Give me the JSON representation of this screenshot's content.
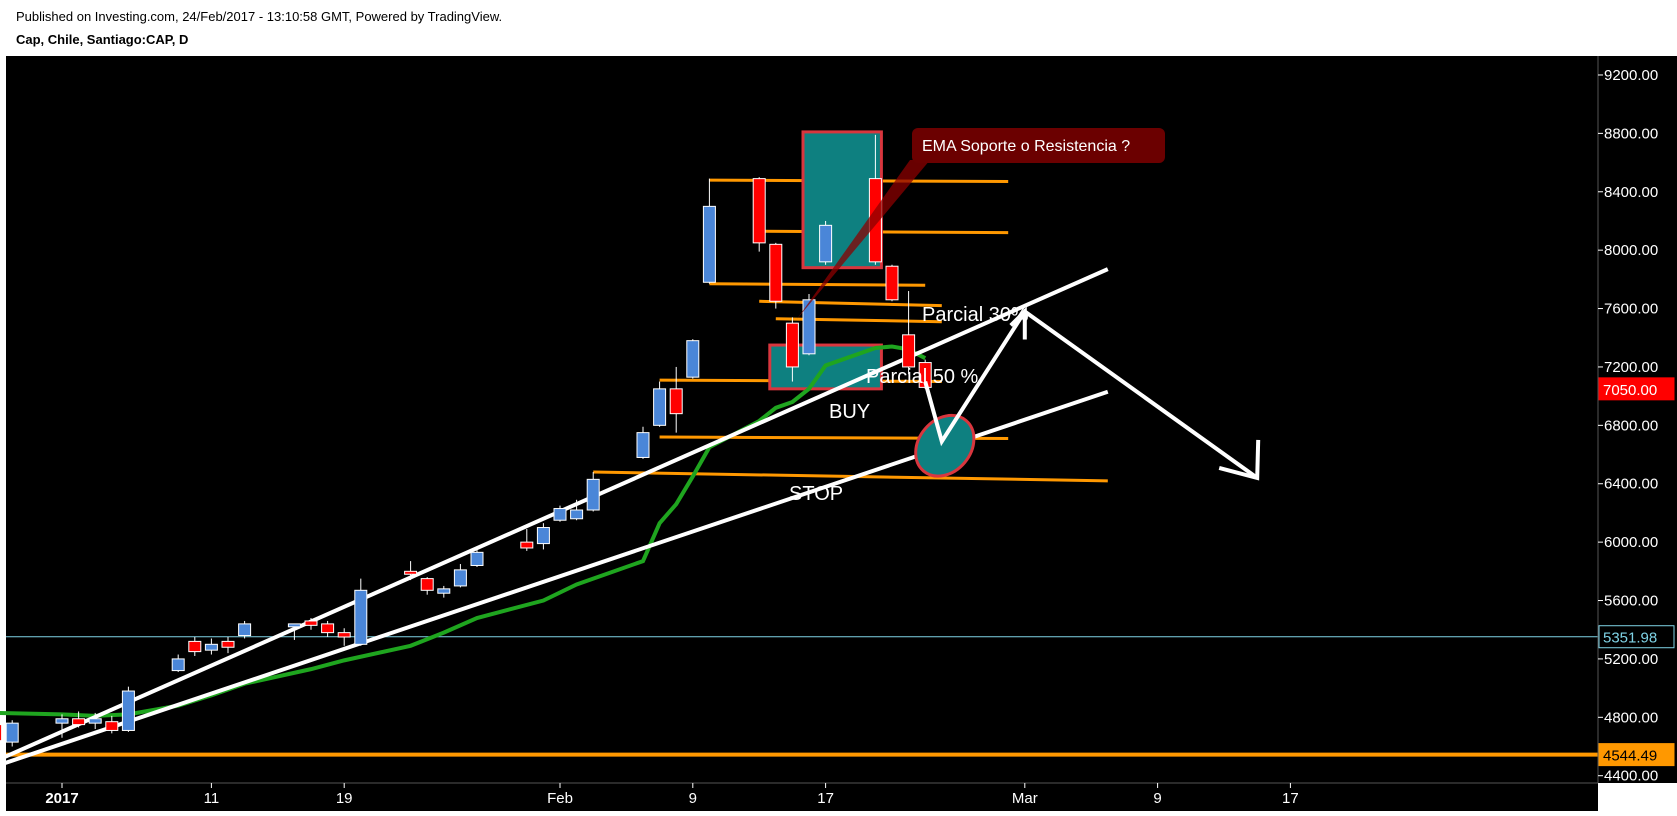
{
  "header": {
    "published": "Published on Investing.com, 24/Feb/2017 - 13:10:58 GMT, Powered by TradingView.",
    "symbol": "Cap, Chile, Santiago:CAP, D"
  },
  "colors": {
    "background": "#000000",
    "up": "#4a86d8",
    "down": "#ff0000",
    "ema": "#1fa51f",
    "level": "#ff9800",
    "trend": "#ffffff",
    "zone": "#0e8080",
    "last_price": "#ff0000",
    "h_line_label": "#7fd3e6"
  },
  "chart_data": {
    "type": "candlestick",
    "title": "Cap, Chile, Santiago:CAP, D",
    "timeframe": "D",
    "ylim": [
      4350,
      9330
    ],
    "y_ticks": [
      4400,
      4800,
      5200,
      5600,
      6000,
      6400,
      6800,
      7200,
      7600,
      8000,
      8400,
      8800,
      9200
    ],
    "y_tick_labels": [
      "4400.00",
      "4800.00",
      "5200.00",
      "5600.00",
      "6000.00",
      "6400.00",
      "6800.00",
      "7200.00",
      "7600.00",
      "8000.00",
      "8400.00",
      "8800.00",
      "9200.00"
    ],
    "x_ticks": [
      {
        "label": "2017",
        "date": "2017-01-02",
        "bold": true
      },
      {
        "label": "11",
        "date": "2017-01-11"
      },
      {
        "label": "19",
        "date": "2017-01-19"
      },
      {
        "label": "Feb",
        "date": "2017-02-01"
      },
      {
        "label": "9",
        "date": "2017-02-09"
      },
      {
        "label": "17",
        "date": "2017-02-17"
      },
      {
        "label": "Mar",
        "date": "2017-03-01"
      },
      {
        "label": "9",
        "date": "2017-03-09"
      },
      {
        "label": "17",
        "date": "2017-03-17"
      }
    ],
    "candles": [
      {
        "date": "2016-12-29",
        "o": 4750,
        "h": 4780,
        "l": 4620,
        "c": 4640
      },
      {
        "date": "2016-12-30",
        "o": 4630,
        "h": 4780,
        "l": 4600,
        "c": 4760
      },
      {
        "date": "2017-01-02",
        "o": 4760,
        "h": 4820,
        "l": 4660,
        "c": 4790
      },
      {
        "date": "2017-01-03",
        "o": 4790,
        "h": 4840,
        "l": 4730,
        "c": 4750
      },
      {
        "date": "2017-01-04",
        "o": 4760,
        "h": 4830,
        "l": 4720,
        "c": 4790
      },
      {
        "date": "2017-01-05",
        "o": 4770,
        "h": 4810,
        "l": 4690,
        "c": 4710
      },
      {
        "date": "2017-01-06",
        "o": 4710,
        "h": 5010,
        "l": 4700,
        "c": 4980
      },
      {
        "date": "2017-01-09",
        "o": 5120,
        "h": 5230,
        "l": 5110,
        "c": 5200
      },
      {
        "date": "2017-01-10",
        "o": 5320,
        "h": 5350,
        "l": 5220,
        "c": 5250
      },
      {
        "date": "2017-01-11",
        "o": 5260,
        "h": 5340,
        "l": 5230,
        "c": 5300
      },
      {
        "date": "2017-01-12",
        "o": 5320,
        "h": 5350,
        "l": 5240,
        "c": 5280
      },
      {
        "date": "2017-01-13",
        "o": 5360,
        "h": 5460,
        "l": 5340,
        "c": 5440
      },
      {
        "date": "2017-01-16",
        "o": 5420,
        "h": 5440,
        "l": 5330,
        "c": 5440
      },
      {
        "date": "2017-01-17",
        "o": 5460,
        "h": 5480,
        "l": 5400,
        "c": 5430
      },
      {
        "date": "2017-01-18",
        "o": 5440,
        "h": 5460,
        "l": 5350,
        "c": 5380
      },
      {
        "date": "2017-01-19",
        "o": 5380,
        "h": 5410,
        "l": 5290,
        "c": 5350
      },
      {
        "date": "2017-01-20",
        "o": 5300,
        "h": 5750,
        "l": 5290,
        "c": 5670
      },
      {
        "date": "2017-01-23",
        "o": 5800,
        "h": 5870,
        "l": 5740,
        "c": 5780
      },
      {
        "date": "2017-01-24",
        "o": 5750,
        "h": 5760,
        "l": 5640,
        "c": 5670
      },
      {
        "date": "2017-01-25",
        "o": 5650,
        "h": 5700,
        "l": 5620,
        "c": 5680
      },
      {
        "date": "2017-01-26",
        "o": 5700,
        "h": 5850,
        "l": 5690,
        "c": 5810
      },
      {
        "date": "2017-01-27",
        "o": 5840,
        "h": 5960,
        "l": 5830,
        "c": 5930
      },
      {
        "date": "2017-01-30",
        "o": 6000,
        "h": 6090,
        "l": 5940,
        "c": 5960
      },
      {
        "date": "2017-01-31",
        "o": 5990,
        "h": 6130,
        "l": 5950,
        "c": 6100
      },
      {
        "date": "2017-02-01",
        "o": 6150,
        "h": 6250,
        "l": 6140,
        "c": 6230
      },
      {
        "date": "2017-02-02",
        "o": 6160,
        "h": 6290,
        "l": 6150,
        "c": 6220
      },
      {
        "date": "2017-02-03",
        "o": 6220,
        "h": 6480,
        "l": 6210,
        "c": 6430
      },
      {
        "date": "2017-02-06",
        "o": 6580,
        "h": 6790,
        "l": 6570,
        "c": 6750
      },
      {
        "date": "2017-02-07",
        "o": 6800,
        "h": 7100,
        "l": 6790,
        "c": 7050
      },
      {
        "date": "2017-02-08",
        "o": 7050,
        "h": 7200,
        "l": 6750,
        "c": 6880
      },
      {
        "date": "2017-02-09",
        "o": 7130,
        "h": 7390,
        "l": 7120,
        "c": 7380
      },
      {
        "date": "2017-02-10",
        "o": 7780,
        "h": 8490,
        "l": 7770,
        "c": 8300
      },
      {
        "date": "2017-02-13",
        "o": 8490,
        "h": 8500,
        "l": 7990,
        "c": 8050
      },
      {
        "date": "2017-02-14",
        "o": 8040,
        "h": 8050,
        "l": 7600,
        "c": 7650
      },
      {
        "date": "2017-02-15",
        "o": 7500,
        "h": 7540,
        "l": 7100,
        "c": 7200
      },
      {
        "date": "2017-02-16",
        "o": 7290,
        "h": 7700,
        "l": 7280,
        "c": 7660
      },
      {
        "date": "2017-02-17",
        "o": 7920,
        "h": 8200,
        "l": 7900,
        "c": 8170
      },
      {
        "date": "2017-02-20",
        "o": 8490,
        "h": 8790,
        "l": 7900,
        "c": 7920
      },
      {
        "date": "2017-02-21",
        "o": 7890,
        "h": 7900,
        "l": 7650,
        "c": 7660
      },
      {
        "date": "2017-02-22",
        "o": 7420,
        "h": 7720,
        "l": 7150,
        "c": 7200
      },
      {
        "date": "2017-02-23",
        "o": 7230,
        "h": 7250,
        "l": 7050,
        "c": 7060
      }
    ],
    "ema": [
      {
        "date": "2016-12-27",
        "v": 4850
      },
      {
        "date": "2016-12-29",
        "v": 4830
      },
      {
        "date": "2017-01-02",
        "v": 4820
      },
      {
        "date": "2017-01-04",
        "v": 4810
      },
      {
        "date": "2017-01-06",
        "v": 4820
      },
      {
        "date": "2017-01-09",
        "v": 4880
      },
      {
        "date": "2017-01-11",
        "v": 4950
      },
      {
        "date": "2017-01-13",
        "v": 5030
      },
      {
        "date": "2017-01-17",
        "v": 5130
      },
      {
        "date": "2017-01-19",
        "v": 5190
      },
      {
        "date": "2017-01-23",
        "v": 5290
      },
      {
        "date": "2017-01-25",
        "v": 5380
      },
      {
        "date": "2017-01-27",
        "v": 5480
      },
      {
        "date": "2017-01-31",
        "v": 5600
      },
      {
        "date": "2017-02-02",
        "v": 5710
      },
      {
        "date": "2017-02-06",
        "v": 5870
      },
      {
        "date": "2017-02-07",
        "v": 6130
      },
      {
        "date": "2017-02-08",
        "v": 6260
      },
      {
        "date": "2017-02-09",
        "v": 6450
      },
      {
        "date": "2017-02-10",
        "v": 6650
      },
      {
        "date": "2017-02-13",
        "v": 6830
      },
      {
        "date": "2017-02-14",
        "v": 6920
      },
      {
        "date": "2017-02-15",
        "v": 6960
      },
      {
        "date": "2017-02-16",
        "v": 7050
      },
      {
        "date": "2017-02-17",
        "v": 7210
      },
      {
        "date": "2017-02-20",
        "v": 7330
      },
      {
        "date": "2017-02-21",
        "v": 7340
      },
      {
        "date": "2017-02-22",
        "v": 7320
      },
      {
        "date": "2017-02-23",
        "v": 7260
      }
    ],
    "horizontal_line": {
      "value": 5351.98,
      "label": "5351.98"
    },
    "support_line": {
      "value": 4544.49,
      "label": "4544.49"
    },
    "last_price": {
      "value": 7050,
      "label": "7050.00"
    },
    "levels": [
      {
        "from": "2017-02-10",
        "to": "2017-02-28",
        "y1": 8480,
        "y2": 8470
      },
      {
        "from": "2017-02-13",
        "to": "2017-02-28",
        "y1": 8130,
        "y2": 8120
      },
      {
        "from": "2017-02-10",
        "to": "2017-02-23",
        "y1": 7770,
        "y2": 7760
      },
      {
        "from": "2017-02-13",
        "to": "2017-02-24",
        "y1": 7650,
        "y2": 7620
      },
      {
        "from": "2017-02-14",
        "to": "2017-02-24",
        "y1": 7530,
        "y2": 7510
      },
      {
        "from": "2017-02-07",
        "to": "2017-02-24",
        "y1": 7110,
        "y2": 7100
      },
      {
        "from": "2017-02-07",
        "to": "2017-02-28",
        "y1": 6720,
        "y2": 6710
      },
      {
        "from": "2017-02-03",
        "to": "2017-03-06",
        "y1": 6480,
        "y2": 6420
      }
    ],
    "trendlines": [
      {
        "d1": "2016-12-26",
        "v1": 4350,
        "d2": "2017-03-06",
        "v2": 7870
      },
      {
        "d1": "2016-12-26",
        "v1": 4350,
        "d2": "2017-03-06",
        "v2": 7030
      }
    ],
    "zones": [
      {
        "d1": "2017-02-16",
        "d2": "2017-02-20",
        "v1": 7880,
        "v2": 8810
      },
      {
        "d1": "2017-02-14",
        "d2": "2017-02-20",
        "v1": 7050,
        "v2": 7350
      }
    ],
    "buy_ellipse": {
      "date": "2017-02-24",
      "v": 6660
    },
    "projection": [
      {
        "date": "2017-02-23",
        "v": 7100
      },
      {
        "date": "2017-02-24",
        "v": 6690
      },
      {
        "date": "2017-03-01",
        "v": 7580
      },
      {
        "date": "2017-03-15",
        "v": 6440
      }
    ],
    "annotations": {
      "callout": "EMA Soporte o Resistencia  ?",
      "parcial30": "Parcial 30%",
      "parcial50": "Parcial 50 %",
      "buy": "BUY",
      "stop": "STOP"
    }
  }
}
